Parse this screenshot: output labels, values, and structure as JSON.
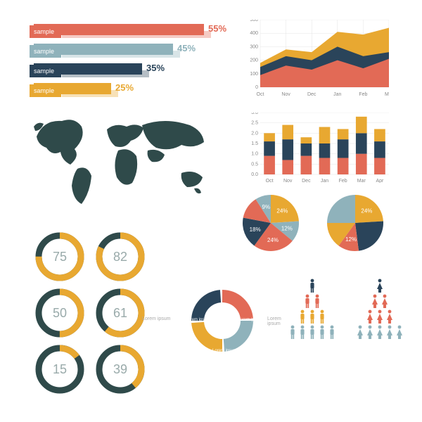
{
  "palette": {
    "coral": "#e26a56",
    "steel": "#8fb2bb",
    "navy": "#2a445a",
    "gold": "#e8a831",
    "teal": "#2f4a4a",
    "grey": "#cfd6d6"
  },
  "hbars": {
    "label": "sample",
    "rows": [
      {
        "pct": 55,
        "color": "#e26a56"
      },
      {
        "pct": 45,
        "color": "#8fb2bb"
      },
      {
        "pct": 35,
        "color": "#2a445a"
      },
      {
        "pct": 25,
        "color": "#e8a831"
      }
    ]
  },
  "area": {
    "ymax": 500,
    "ystep": 100,
    "categories": [
      "Oct",
      "Nov",
      "Dec",
      "Jan",
      "Feb",
      "Mar"
    ],
    "series": [
      {
        "color": "#e8a831",
        "values": [
          180,
          280,
          260,
          410,
          390,
          440
        ]
      },
      {
        "color": "#2a445a",
        "values": [
          150,
          230,
          200,
          300,
          230,
          260
        ]
      },
      {
        "color": "#e26a56",
        "values": [
          90,
          160,
          130,
          200,
          140,
          210
        ]
      }
    ]
  },
  "sbar": {
    "ymax": 3.0,
    "ystep": 0.5,
    "categories": [
      "Oct",
      "Nov",
      "Dec",
      "Jan",
      "Feb",
      "Mar",
      "Apr"
    ],
    "stacks": [
      {
        "color": "#e26a56"
      },
      {
        "color": "#2a445a"
      },
      {
        "color": "#e8a831"
      }
    ],
    "data": [
      [
        0.9,
        0.7,
        0.4
      ],
      [
        0.7,
        1.0,
        0.7
      ],
      [
        0.9,
        0.6,
        0.3
      ],
      [
        0.8,
        0.7,
        0.8
      ],
      [
        0.8,
        0.9,
        0.5
      ],
      [
        1.0,
        1.0,
        0.8
      ],
      [
        0.8,
        0.8,
        0.6
      ]
    ]
  },
  "gauges": [
    {
      "value": 75,
      "color": "#e8a831"
    },
    {
      "value": 82,
      "color": "#e8a831"
    },
    {
      "value": 50,
      "color": "#e8a831"
    },
    {
      "value": 61,
      "color": "#e8a831"
    },
    {
      "value": 15,
      "color": "#e8a831"
    },
    {
      "value": 39,
      "color": "#e8a831"
    }
  ],
  "pies": [
    {
      "slices": [
        {
          "pct": 24,
          "color": "#e8a831",
          "label": "24%"
        },
        {
          "pct": 12,
          "color": "#8fb2bb",
          "label": "12%"
        },
        {
          "pct": 24,
          "color": "#e26a56",
          "label": "24%"
        },
        {
          "pct": 18,
          "color": "#2a445a",
          "label": "18%"
        },
        {
          "pct": 13,
          "color": "#e26a56",
          "label": ""
        },
        {
          "pct": 9,
          "color": "#8fb2bb",
          "label": "9%"
        }
      ]
    },
    {
      "slices": [
        {
          "pct": 24,
          "color": "#e8a831",
          "label": "24%"
        },
        {
          "pct": 24,
          "color": "#2a445a",
          "label": ""
        },
        {
          "pct": 12,
          "color": "#e26a56",
          "label": "12%"
        },
        {
          "pct": 15,
          "color": "#e8a831",
          "label": ""
        },
        {
          "pct": 25,
          "color": "#8fb2bb",
          "label": ""
        }
      ]
    }
  ],
  "segring": {
    "segments": [
      {
        "color": "#e26a56",
        "label": "Lorem ipsum"
      },
      {
        "color": "#8fb2bb",
        "label": "Lorem ipsum"
      },
      {
        "color": "#e8a831",
        "label": "Lorem ipsum"
      },
      {
        "color": "#2a445a",
        "label": "Lorem ipsum"
      }
    ],
    "side": "Lorem ipsum"
  },
  "people": {
    "male": {
      "color_top": "#2a445a",
      "rows": [
        [
          1,
          "#2a445a"
        ],
        [
          2,
          "#e26a56"
        ],
        [
          3,
          "#e8a831"
        ],
        [
          5,
          "#8fb2bb"
        ]
      ]
    },
    "female": {
      "color_top": "#2a445a",
      "rows": [
        [
          1,
          "#2a445a"
        ],
        [
          2,
          "#e26a56"
        ],
        [
          3,
          "#e26a56"
        ],
        [
          5,
          "#8fb2bb"
        ]
      ]
    }
  }
}
